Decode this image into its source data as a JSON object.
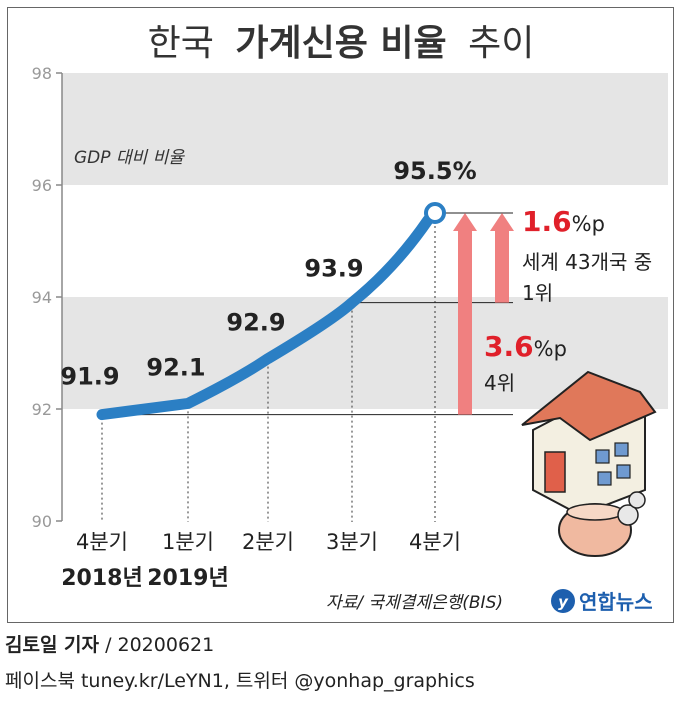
{
  "title": {
    "main": "한국",
    "bold": "가계신용 비율",
    "tail": "추이"
  },
  "subtitle": "GDP 대비 비율",
  "chart_data": {
    "type": "line",
    "title": "한국 가계신용 비율 추이",
    "ylabel": "GDP 대비 비율",
    "ylim": [
      90,
      98
    ],
    "yticks": [
      "98",
      "96",
      "94",
      "92",
      "90"
    ],
    "grid": true,
    "categories": [
      "4분기",
      "1분기",
      "2분기",
      "3분기",
      "4분기"
    ],
    "years": [
      "2018년",
      "2019년"
    ],
    "series": [
      {
        "values": [
          91.9,
          92.1,
          92.9,
          93.9,
          95.5
        ]
      }
    ],
    "data_labels": [
      "91.9",
      "92.1",
      "92.9",
      "93.9",
      "95.5%"
    ],
    "annotations": [
      {
        "value": "1.6",
        "unit": "%p",
        "line1": "세계 43개국 중",
        "line2": "1위"
      },
      {
        "value": "3.6",
        "unit": "%p",
        "line1": "4위"
      }
    ],
    "colors": {
      "line": "#2b7fc4",
      "band": "#e5e5e5",
      "arrow": "#f08080",
      "accent": "#e0202a"
    }
  },
  "source": "자료/ 국제결제은행(BIS)",
  "logo": "연합뉴스",
  "footer": {
    "author": "김토일 기자",
    "date": "/ 20200621",
    "social": "페이스북 tuney.kr/LeYN1, 트위터 @yonhap_graphics"
  }
}
